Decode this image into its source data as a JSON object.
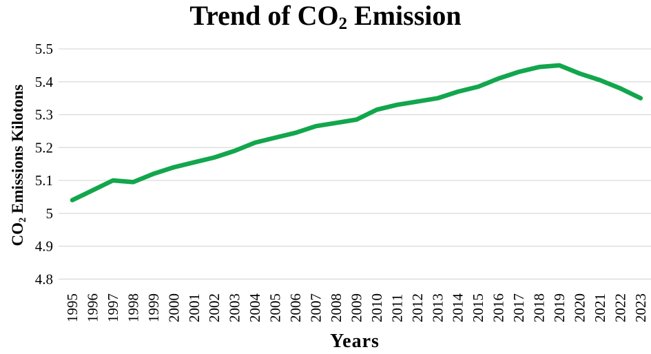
{
  "chart_data": {
    "type": "line",
    "title": "Trend of CO₂ Emission",
    "title_parts": {
      "prefix": "Trend of CO",
      "sub": "2",
      "suffix": " Emission"
    },
    "ylabel": "CO₂ Emissions Kilotons",
    "ylabel_parts": {
      "prefix": "CO",
      "sub": "2",
      "suffix": " Emissions Kilotons"
    },
    "xlabel": "Years",
    "x": [
      1995,
      1996,
      1997,
      1998,
      1999,
      2000,
      2001,
      2002,
      2003,
      2004,
      2005,
      2006,
      2007,
      2008,
      2009,
      2010,
      2011,
      2012,
      2013,
      2014,
      2015,
      2016,
      2017,
      2018,
      2019,
      2020,
      2021,
      2022,
      2023
    ],
    "values": [
      5.04,
      5.07,
      5.1,
      5.095,
      5.12,
      5.14,
      5.155,
      5.17,
      5.19,
      5.215,
      5.23,
      5.245,
      5.265,
      5.275,
      5.285,
      5.315,
      5.33,
      5.34,
      5.35,
      5.37,
      5.385,
      5.41,
      5.43,
      5.445,
      5.45,
      5.425,
      5.405,
      5.38,
      5.35
    ],
    "ylim": [
      4.8,
      5.5
    ],
    "ytick_values": [
      5.5,
      5.4,
      5.3,
      5.2,
      5.1,
      5.0,
      4.9,
      4.8
    ],
    "ytick_labels": [
      "5.5",
      "5.4",
      "5.3",
      "5.2",
      "5.1",
      "5",
      "4.9",
      "4.8"
    ],
    "grid": "horizontal",
    "legend": "none",
    "line_color": "#12A64D",
    "grid_color": "#D9D9D9",
    "text_color": "#000000"
  }
}
